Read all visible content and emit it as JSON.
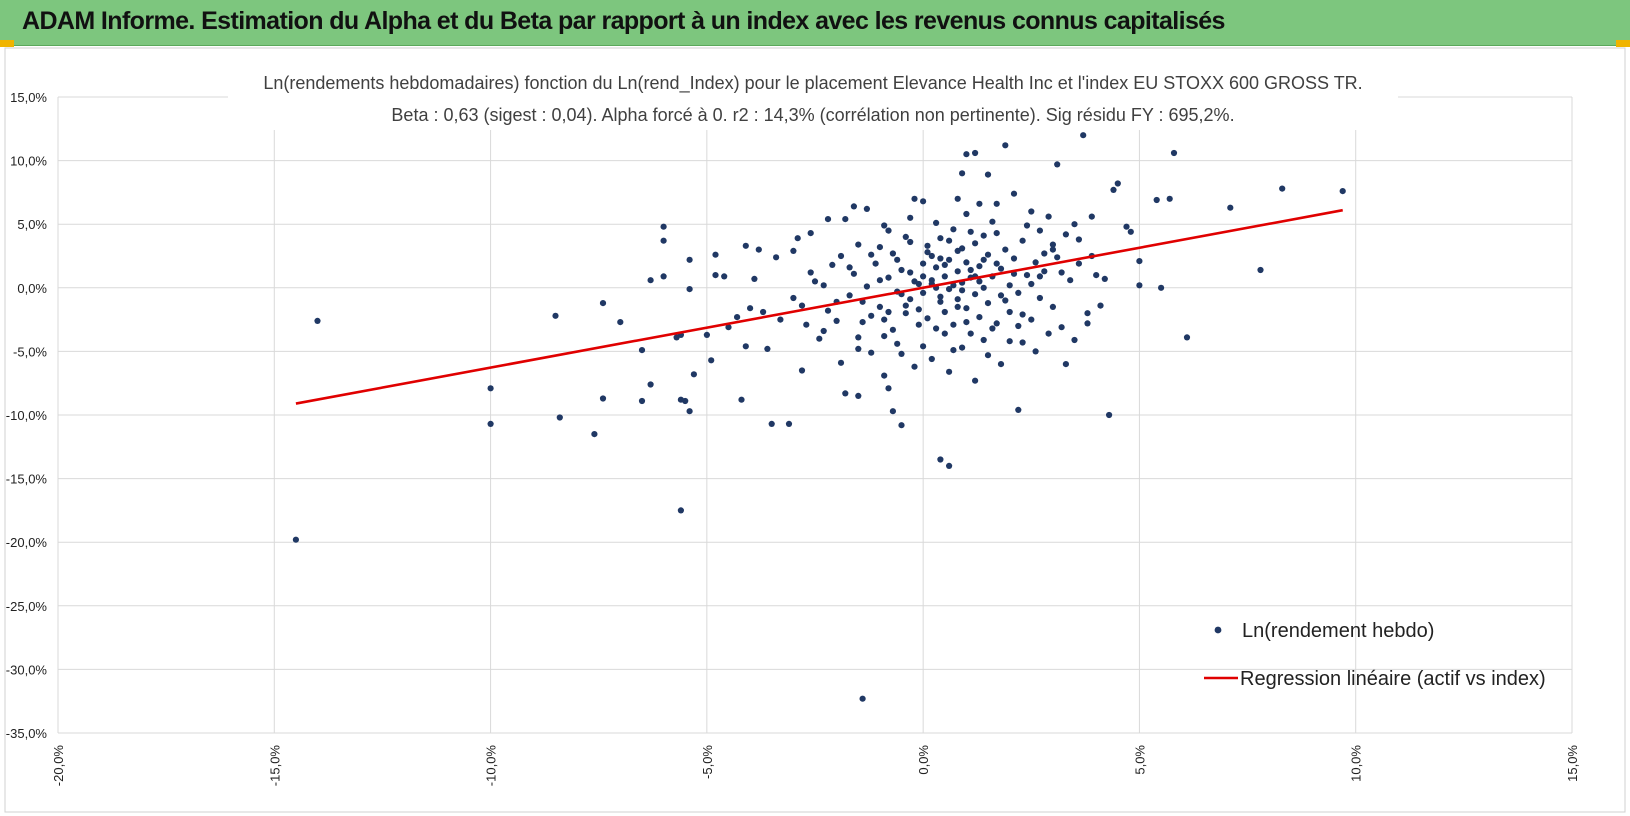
{
  "header": {
    "title": "ADAM Informe. Estimation du Alpha et du Beta par rapport à un index avec les revenus connus capitalisés"
  },
  "colors": {
    "banner": "#7dc67e",
    "points": "#203864",
    "regression": "#e00000",
    "grid": "#d9d9d9"
  },
  "chart_data": {
    "type": "scatter",
    "title_line1": "Ln(rendements hebdomadaires) fonction du Ln(rend_Index) pour le placement Elevance Health Inc et l'index EU STOXX 600 GROSS TR.",
    "title_line2": "Beta : 0,63 (sigest : 0,04). Alpha forcé à 0. r2 : 14,3% (corrélation non pertinente). Sig résidu FY : 695,2%.",
    "xlim": [
      -20,
      15
    ],
    "ylim": [
      -35,
      15
    ],
    "x_ticks": [
      "-20,0%",
      "-15,0%",
      "-10,0%",
      "-5,0%",
      "0,0%",
      "5,0%",
      "10,0%",
      "15,0%"
    ],
    "y_ticks": [
      "15,0%",
      "10,0%",
      "5,0%",
      "0,0%",
      "-5,0%",
      "-10,0%",
      "-15,0%",
      "-20,0%",
      "-25,0%",
      "-30,0%",
      "-35,0%"
    ],
    "grid": true,
    "legend_position": "bottom-right",
    "series": [
      {
        "name": "Ln(rendement hebdo)",
        "kind": "scatter",
        "points": [
          [
            -14.5,
            -19.8
          ],
          [
            -14.0,
            -2.6
          ],
          [
            -10.0,
            -10.7
          ],
          [
            -10.0,
            -7.9
          ],
          [
            -8.5,
            -2.2
          ],
          [
            -8.4,
            -10.2
          ],
          [
            -7.6,
            -11.5
          ],
          [
            -7.4,
            -8.7
          ],
          [
            -7.4,
            -1.2
          ],
          [
            -7.0,
            -2.7
          ],
          [
            -6.5,
            -4.9
          ],
          [
            -6.5,
            -8.9
          ],
          [
            -6.3,
            0.6
          ],
          [
            -6.3,
            -7.6
          ],
          [
            -6.0,
            4.8
          ],
          [
            -6.0,
            3.7
          ],
          [
            -6.0,
            0.9
          ],
          [
            -5.7,
            -3.9
          ],
          [
            -5.6,
            -3.7
          ],
          [
            -5.6,
            -8.8
          ],
          [
            -5.6,
            -17.5
          ],
          [
            -5.5,
            -8.9
          ],
          [
            -5.4,
            2.2
          ],
          [
            -5.4,
            -0.1
          ],
          [
            -5.4,
            -9.7
          ],
          [
            -5.3,
            -6.8
          ],
          [
            -5.0,
            -3.7
          ],
          [
            -4.9,
            -5.7
          ],
          [
            -4.8,
            2.6
          ],
          [
            -4.8,
            1.0
          ],
          [
            -4.6,
            0.9
          ],
          [
            -4.5,
            -3.1
          ],
          [
            -4.2,
            -8.8
          ],
          [
            -4.1,
            3.3
          ],
          [
            -4.1,
            -4.6
          ],
          [
            -3.8,
            3.0
          ],
          [
            -3.5,
            -10.7
          ],
          [
            -3.4,
            2.4
          ],
          [
            -3.1,
            -10.7
          ],
          [
            -3.0,
            2.9
          ],
          [
            -2.8,
            -6.5
          ],
          [
            -2.6,
            4.3
          ],
          [
            -2.2,
            5.4
          ],
          [
            -1.8,
            5.4
          ],
          [
            -1.8,
            -8.3
          ],
          [
            -1.6,
            6.4
          ],
          [
            -1.5,
            -4.8
          ],
          [
            -1.5,
            -8.5
          ],
          [
            -1.4,
            -32.3
          ],
          [
            -1.3,
            6.2
          ],
          [
            -1.2,
            -2.2
          ],
          [
            -1.0,
            3.2
          ],
          [
            -0.8,
            4.5
          ],
          [
            -0.8,
            -7.9
          ],
          [
            -0.7,
            -9.7
          ],
          [
            -0.5,
            -10.8
          ],
          [
            -0.5,
            -5.2
          ],
          [
            -0.3,
            5.5
          ],
          [
            -0.2,
            7.0
          ],
          [
            0.0,
            6.8
          ],
          [
            0.2,
            2.5
          ],
          [
            0.4,
            -13.5
          ],
          [
            0.6,
            -14.0
          ],
          [
            0.8,
            7.0
          ],
          [
            0.9,
            9.0
          ],
          [
            1.0,
            10.5
          ],
          [
            1.2,
            10.6
          ],
          [
            1.3,
            6.6
          ],
          [
            1.5,
            8.9
          ],
          [
            1.7,
            6.6
          ],
          [
            1.9,
            11.2
          ],
          [
            2.1,
            7.4
          ],
          [
            2.2,
            -9.6
          ],
          [
            2.3,
            -4.3
          ],
          [
            2.5,
            6.0
          ],
          [
            2.7,
            4.5
          ],
          [
            3.0,
            3.0
          ],
          [
            3.1,
            9.7
          ],
          [
            3.3,
            -6.0
          ],
          [
            3.5,
            5.0
          ],
          [
            3.6,
            3.8
          ],
          [
            3.7,
            12.0
          ],
          [
            3.8,
            -2.8
          ],
          [
            3.9,
            5.6
          ],
          [
            4.0,
            1.0
          ],
          [
            4.2,
            0.7
          ],
          [
            4.3,
            -10.0
          ],
          [
            4.4,
            7.7
          ],
          [
            4.5,
            8.2
          ],
          [
            4.7,
            4.8
          ],
          [
            4.8,
            4.4
          ],
          [
            5.0,
            0.2
          ],
          [
            5.0,
            2.1
          ],
          [
            5.4,
            6.9
          ],
          [
            5.5,
            0.0
          ],
          [
            5.7,
            7.0
          ],
          [
            5.8,
            10.6
          ],
          [
            6.1,
            -3.9
          ],
          [
            7.1,
            6.3
          ],
          [
            7.8,
            1.4
          ],
          [
            8.3,
            7.8
          ],
          [
            9.7,
            7.6
          ],
          [
            -4.0,
            -1.6
          ],
          [
            -3.7,
            -1.9
          ],
          [
            -3.3,
            -2.5
          ],
          [
            -3.0,
            -0.8
          ],
          [
            -2.7,
            -2.9
          ],
          [
            -2.5,
            0.5
          ],
          [
            -2.3,
            -3.4
          ],
          [
            -2.1,
            1.8
          ],
          [
            -2.0,
            -1.1
          ],
          [
            -1.9,
            2.5
          ],
          [
            -1.7,
            -0.6
          ],
          [
            -1.6,
            1.1
          ],
          [
            -1.4,
            -2.7
          ],
          [
            -1.3,
            0.1
          ],
          [
            -1.1,
            1.9
          ],
          [
            -1.0,
            -1.5
          ],
          [
            -0.9,
            -3.8
          ],
          [
            -0.8,
            0.8
          ],
          [
            -0.7,
            2.7
          ],
          [
            -0.6,
            -0.3
          ],
          [
            -0.5,
            1.4
          ],
          [
            -0.4,
            -2.0
          ],
          [
            -0.3,
            3.6
          ],
          [
            -0.3,
            -0.9
          ],
          [
            -0.2,
            0.5
          ],
          [
            -0.1,
            -1.7
          ],
          [
            0.0,
            1.9
          ],
          [
            0.0,
            -0.4
          ],
          [
            0.1,
            2.8
          ],
          [
            0.1,
            -2.4
          ],
          [
            0.2,
            0.3
          ],
          [
            0.3,
            -3.2
          ],
          [
            0.3,
            1.6
          ],
          [
            0.4,
            -0.7
          ],
          [
            0.4,
            3.9
          ],
          [
            0.5,
            0.9
          ],
          [
            0.5,
            -1.9
          ],
          [
            0.6,
            2.2
          ],
          [
            0.6,
            -0.1
          ],
          [
            0.7,
            4.6
          ],
          [
            0.7,
            -2.9
          ],
          [
            0.8,
            1.3
          ],
          [
            0.8,
            -0.9
          ],
          [
            0.9,
            3.1
          ],
          [
            0.9,
            0.4
          ],
          [
            1.0,
            -1.6
          ],
          [
            1.0,
            2.0
          ],
          [
            1.1,
            -3.6
          ],
          [
            1.1,
            0.8
          ],
          [
            1.2,
            3.5
          ],
          [
            1.2,
            -0.5
          ],
          [
            1.3,
            1.7
          ],
          [
            1.3,
            -2.3
          ],
          [
            1.4,
            4.1
          ],
          [
            1.4,
            0.0
          ],
          [
            1.5,
            2.6
          ],
          [
            1.5,
            -1.2
          ],
          [
            1.6,
            0.9
          ],
          [
            1.6,
            5.2
          ],
          [
            1.7,
            -2.8
          ],
          [
            1.8,
            1.5
          ],
          [
            1.8,
            -0.6
          ],
          [
            1.9,
            3.0
          ],
          [
            2.0,
            0.2
          ],
          [
            2.0,
            -1.9
          ],
          [
            2.1,
            2.3
          ],
          [
            2.2,
            -0.4
          ],
          [
            2.3,
            3.7
          ],
          [
            2.4,
            1.0
          ],
          [
            2.5,
            -2.5
          ],
          [
            2.6,
            2.0
          ],
          [
            2.7,
            -0.8
          ],
          [
            2.8,
            1.3
          ],
          [
            3.0,
            -1.5
          ],
          [
            3.1,
            2.4
          ],
          [
            3.2,
            -3.1
          ],
          [
            3.4,
            0.6
          ],
          [
            3.6,
            1.9
          ],
          [
            -1.2,
            -5.1
          ],
          [
            -0.6,
            -4.4
          ],
          [
            0.2,
            -5.6
          ],
          [
            0.9,
            -4.7
          ],
          [
            1.5,
            -5.3
          ],
          [
            2.0,
            -4.2
          ],
          [
            -2.4,
            -4.0
          ],
          [
            -1.9,
            -5.9
          ],
          [
            -0.2,
            -6.2
          ],
          [
            0.6,
            -6.6
          ],
          [
            1.2,
            -7.3
          ],
          [
            1.8,
            -6.0
          ],
          [
            -0.9,
            -6.9
          ],
          [
            2.6,
            -5.0
          ],
          [
            -3.6,
            -4.8
          ],
          [
            -4.3,
            -2.3
          ],
          [
            -3.9,
            0.7
          ],
          [
            -2.9,
            3.9
          ],
          [
            -2.6,
            1.2
          ],
          [
            -2.2,
            -1.8
          ],
          [
            -1.5,
            3.4
          ],
          [
            -0.9,
            4.9
          ],
          [
            -0.4,
            4.0
          ],
          [
            0.3,
            5.1
          ],
          [
            1.0,
            5.8
          ],
          [
            1.7,
            4.3
          ],
          [
            2.4,
            4.9
          ],
          [
            2.9,
            5.6
          ],
          [
            3.3,
            4.2
          ],
          [
            3.9,
            2.5
          ],
          [
            4.1,
            -1.4
          ],
          [
            3.8,
            -2.0
          ],
          [
            3.5,
            -4.1
          ],
          [
            2.9,
            -3.6
          ],
          [
            2.2,
            -3.0
          ],
          [
            1.4,
            -4.1
          ],
          [
            0.7,
            -4.9
          ],
          [
            0.0,
            -4.6
          ],
          [
            -0.7,
            -3.3
          ],
          [
            -1.5,
            -3.9
          ],
          [
            -2.0,
            -2.6
          ],
          [
            -2.8,
            -1.4
          ],
          [
            -0.3,
            1.2
          ],
          [
            0.2,
            0.6
          ],
          [
            0.5,
            1.8
          ],
          [
            0.8,
            2.9
          ],
          [
            1.1,
            1.4
          ],
          [
            1.4,
            2.2
          ],
          [
            -0.5,
            -0.5
          ],
          [
            -0.1,
            0.3
          ],
          [
            0.4,
            -1.1
          ],
          [
            0.9,
            -0.2
          ],
          [
            1.3,
            0.5
          ],
          [
            1.7,
            1.9
          ],
          [
            0.1,
            3.3
          ],
          [
            0.6,
            3.7
          ],
          [
            1.1,
            4.4
          ],
          [
            -0.6,
            2.2
          ],
          [
            -1.0,
            0.6
          ],
          [
            -1.4,
            -1.1
          ],
          [
            2.1,
            1.1
          ],
          [
            2.5,
            0.3
          ],
          [
            2.8,
            2.7
          ],
          [
            3.2,
            1.2
          ],
          [
            1.6,
            -3.2
          ],
          [
            1.0,
            -2.7
          ],
          [
            0.5,
            -3.6
          ],
          [
            -0.1,
            -2.9
          ],
          [
            -0.8,
            -1.9
          ],
          [
            -1.2,
            2.6
          ],
          [
            -1.7,
            1.6
          ],
          [
            -2.3,
            0.2
          ],
          [
            0.3,
            0.0
          ],
          [
            0.7,
            0.2
          ],
          [
            1.2,
            0.9
          ],
          [
            0.0,
            0.9
          ],
          [
            0.4,
            2.3
          ],
          [
            0.8,
            -1.5
          ],
          [
            1.9,
            -1.0
          ],
          [
            2.3,
            -2.1
          ],
          [
            2.7,
            0.9
          ],
          [
            3.0,
            3.4
          ],
          [
            -0.4,
            -1.4
          ],
          [
            -0.9,
            -2.5
          ]
        ]
      },
      {
        "name": "Regression linéaire (actif vs index)",
        "kind": "line",
        "x": [
          -14.5,
          9.7
        ],
        "y": [
          -9.1,
          6.1
        ]
      }
    ]
  }
}
